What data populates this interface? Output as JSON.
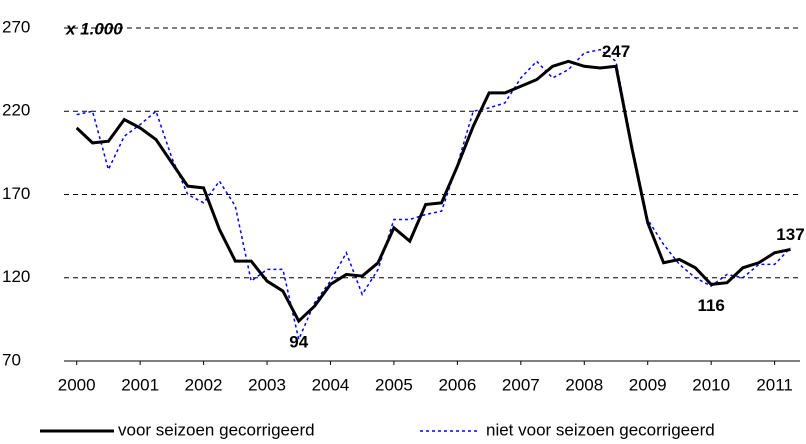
{
  "chart_data": {
    "type": "line",
    "subtitle": "x 1.000",
    "x": [
      2000,
      2000.25,
      2000.5,
      2000.75,
      2001,
      2001.25,
      2001.5,
      2001.75,
      2002,
      2002.25,
      2002.5,
      2002.75,
      2003,
      2003.25,
      2003.5,
      2003.75,
      2004,
      2004.25,
      2004.5,
      2004.75,
      2005,
      2005.25,
      2005.5,
      2005.75,
      2006,
      2006.25,
      2006.5,
      2006.75,
      2007,
      2007.25,
      2007.5,
      2007.75,
      2008,
      2008.25,
      2008.5,
      2008.75,
      2009,
      2009.25,
      2009.5,
      2009.75,
      2010,
      2010.25,
      2010.5,
      2010.75,
      2011,
      2011.25
    ],
    "series": [
      {
        "name": "voor seizoen gecorrigeerd",
        "color": "#000000",
        "style": "solid",
        "values": [
          210,
          201,
          202,
          215,
          210,
          203,
          189,
          175,
          174,
          149,
          130,
          130,
          118,
          112,
          94,
          103,
          116,
          122,
          121,
          129,
          150,
          142,
          164,
          165,
          187,
          211,
          231,
          231,
          235,
          239,
          247,
          250,
          247,
          246,
          247,
          198,
          153,
          129,
          131,
          126,
          116,
          117,
          126,
          129,
          135,
          137
        ]
      },
      {
        "name": "niet voor seizoen gecorrigeerd",
        "color": "#0000ff",
        "style": "dotted",
        "values": [
          218,
          220,
          185,
          205,
          212,
          220,
          192,
          170,
          165,
          178,
          163,
          118,
          125,
          125,
          83,
          105,
          118,
          135,
          110,
          125,
          155,
          155,
          158,
          160,
          188,
          220,
          222,
          225,
          240,
          250,
          240,
          245,
          255,
          257,
          250,
          200,
          155,
          140,
          128,
          120,
          115,
          122,
          120,
          128,
          128,
          138
        ]
      }
    ],
    "annotations": [
      {
        "text": "94",
        "x": 2003.5,
        "y": 94
      },
      {
        "text": "247",
        "x": 2008.5,
        "y": 247
      },
      {
        "text": "116",
        "x": 2010,
        "y": 116
      },
      {
        "text": "137",
        "x": 2011.25,
        "y": 137
      }
    ],
    "xlim": [
      1999.8,
      2011.4
    ],
    "xticks": [
      2000,
      2001,
      2002,
      2003,
      2004,
      2005,
      2006,
      2007,
      2008,
      2009,
      2010,
      2011
    ],
    "ylim": [
      70,
      270
    ],
    "yticks": [
      70,
      120,
      170,
      220,
      270
    ],
    "grid": true
  }
}
